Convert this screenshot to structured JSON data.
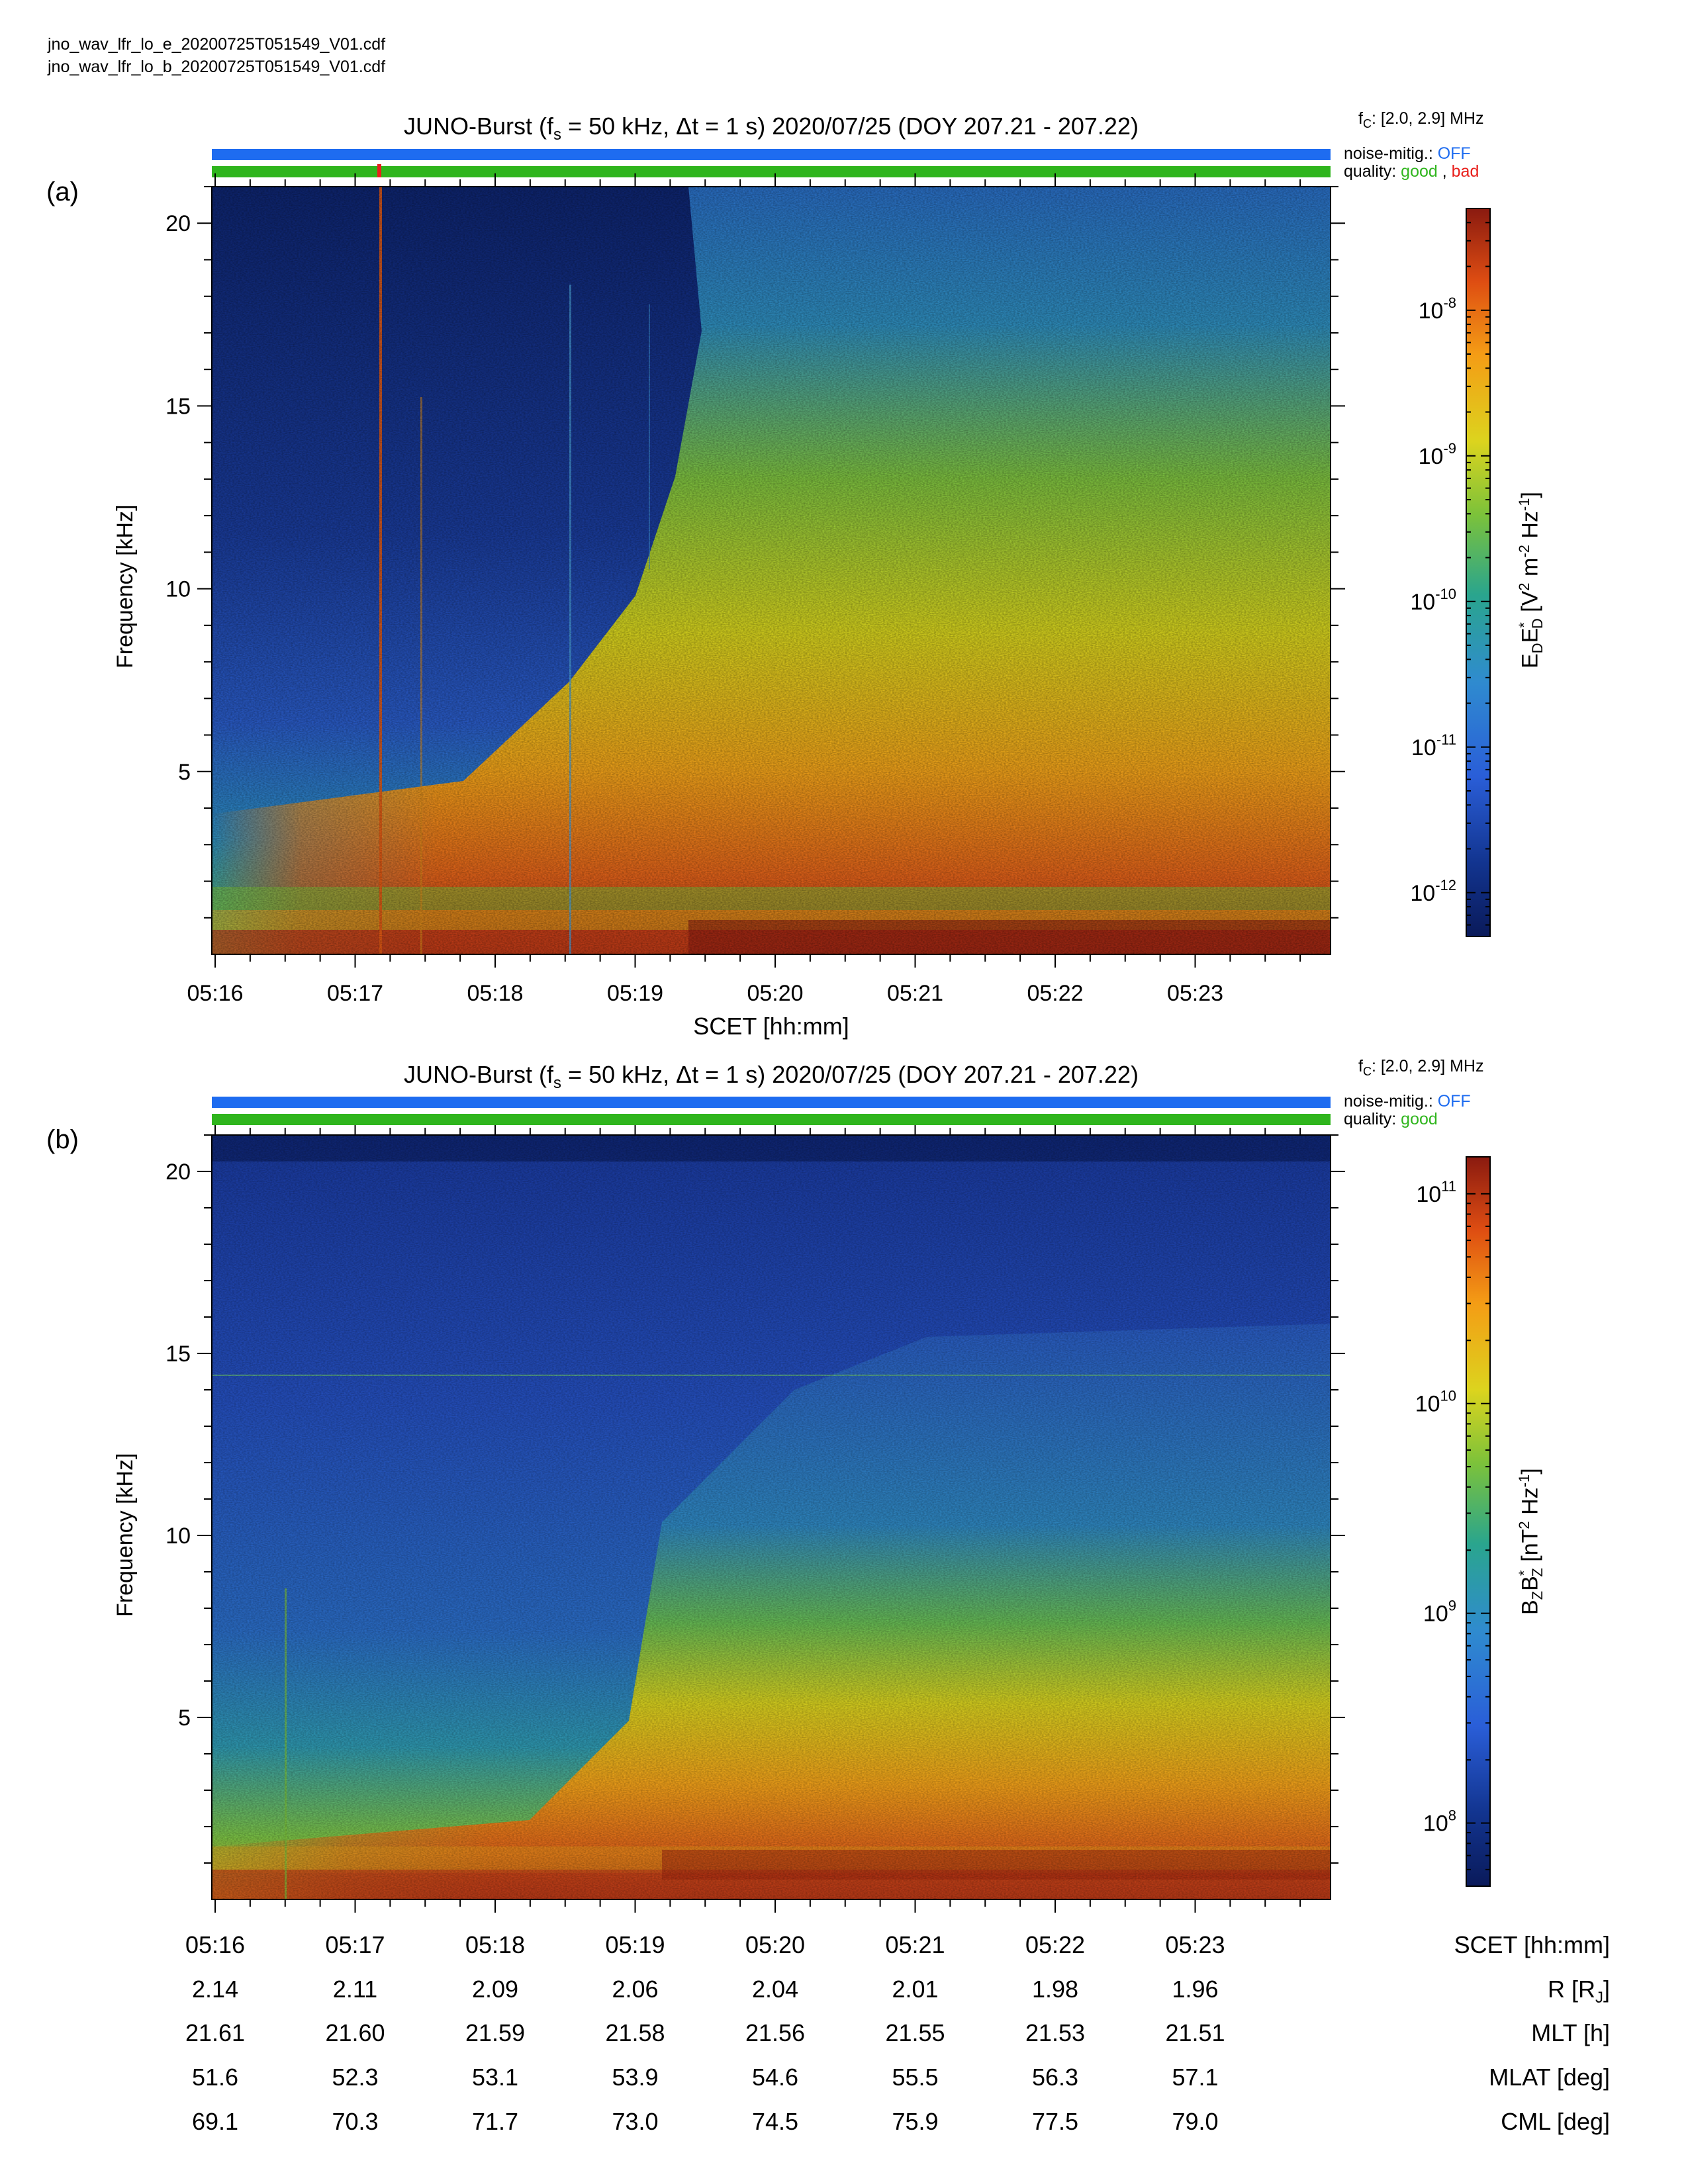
{
  "files": [
    "jno_wav_lfr_lo_e_20200725T051549_V01.cdf",
    "jno_wav_lfr_lo_b_20200725T051549_V01.cdf"
  ],
  "panels": [
    {
      "label": "(a)",
      "title_main": "JUNO-Burst (f",
      "title_sub": "s",
      "title_rest": " = 50 kHz, Δt = 1 s)  2020/07/25 (DOY 207.21 - 207.22)",
      "fc_prefix": "f",
      "fc_sub": "C",
      "fc_value": ": [2.0, 2.9] MHz",
      "noise_label": "noise-mitig.: ",
      "noise_value": "OFF",
      "quality_label": "quality: ",
      "quality_good": "good",
      "quality_sep": " , ",
      "quality_bad": "bad",
      "colorbar_ticks": [
        "10-8",
        "10-9",
        "10-10",
        "10-11",
        "10-12"
      ],
      "colorbar_label": "E_D E_D* [V^2 m^-2 Hz^-1]",
      "colors": {
        "noise_bar": "#1e6cf0",
        "quality_good": "#2fb51d",
        "quality_bad": "#e8201c"
      }
    },
    {
      "label": "(b)",
      "title_main": "JUNO-Burst (f",
      "title_sub": "s",
      "title_rest": " = 50 kHz, Δt = 1 s)  2020/07/25 (DOY 207.21 - 207.22)",
      "fc_prefix": "f",
      "fc_sub": "C",
      "fc_value": ": [2.0, 2.9] MHz",
      "noise_label": "noise-mitig.: ",
      "noise_value": "OFF",
      "quality_label": "quality: ",
      "quality_good": "good",
      "colorbar_ticks": [
        "10^11",
        "10^10",
        "10^9",
        "10^8"
      ],
      "colorbar_label": "B_Z B_Z* [nT^2 Hz^-1]",
      "colors": {
        "noise_bar": "#1e6cf0",
        "quality_good": "#2fb51d"
      }
    }
  ],
  "chart_data": [
    {
      "type": "heatmap",
      "title": "JUNO-Burst (fs = 50 kHz, Δt = 1 s)  2020/07/25 (DOY 207.21 - 207.22)",
      "xlabel": "SCET [hh:mm]",
      "ylabel": "Frequency [kHz]",
      "x_ticks": [
        "05:16",
        "05:17",
        "05:18",
        "05:19",
        "05:20",
        "05:21",
        "05:22",
        "05:23"
      ],
      "y_ticks": [
        5,
        10,
        15,
        20
      ],
      "ylim": [
        0,
        21
      ],
      "colorbar": {
        "label": "E_D E_D* [V^2 m^-2 Hz^-1]",
        "scale": "log",
        "range": [
          5e-13,
          5e-08
        ]
      }
    },
    {
      "type": "heatmap",
      "title": "JUNO-Burst (fs = 50 kHz, Δt = 1 s)  2020/07/25 (DOY 207.21 - 207.22)",
      "ylabel": "Frequency [kHz]",
      "x_ticks": [
        "05:16",
        "05:17",
        "05:18",
        "05:19",
        "05:20",
        "05:21",
        "05:22",
        "05:23"
      ],
      "y_ticks": [
        5,
        10,
        15,
        20
      ],
      "ylim": [
        0,
        21
      ],
      "colorbar": {
        "label": "B_Z B_Z* [nT^2 Hz^-1]",
        "scale": "log",
        "range": [
          50000000.0,
          150000000000.0
        ]
      }
    }
  ],
  "texts": {
    "xlabel_a": "SCET [hh:mm]",
    "ylabel": "Frequency [kHz]",
    "yticks": [
      "20",
      "15",
      "10",
      "5"
    ],
    "xticks": [
      "05:16",
      "05:17",
      "05:18",
      "05:19",
      "05:20",
      "05:21",
      "05:22",
      "05:23"
    ]
  },
  "ephemeris": {
    "row_labels": [
      "SCET [hh:mm]",
      "R [R_J]",
      "MLT [h]",
      "MLAT [deg]",
      "CML [deg]"
    ],
    "scet": [
      "05:16",
      "05:17",
      "05:18",
      "05:19",
      "05:20",
      "05:21",
      "05:22",
      "05:23"
    ],
    "R": [
      "2.14",
      "2.11",
      "2.09",
      "2.06",
      "2.04",
      "2.01",
      "1.98",
      "1.96"
    ],
    "MLT": [
      "21.61",
      "21.60",
      "21.59",
      "21.58",
      "21.56",
      "21.55",
      "21.53",
      "21.51"
    ],
    "MLAT": [
      "51.6",
      "52.3",
      "53.1",
      "53.9",
      "54.6",
      "55.5",
      "56.3",
      "57.1"
    ],
    "CML": [
      "69.1",
      "70.3",
      "71.7",
      "73.0",
      "74.5",
      "75.9",
      "77.5",
      "79.0"
    ]
  }
}
